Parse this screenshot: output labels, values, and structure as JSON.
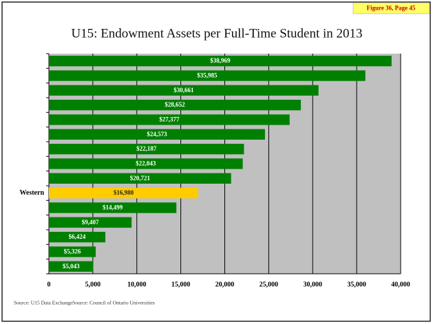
{
  "chart_data": {
    "type": "hbar",
    "title": "U15: Endowment Assets per Full-Time Student in 2013",
    "badge": "Figure 36, Page 45",
    "source": "Source:  U15 Data ExchangeSource:  Council of Ontario Universities",
    "categories": [
      null,
      null,
      null,
      null,
      null,
      null,
      null,
      null,
      null,
      "Western",
      null,
      null,
      null,
      null,
      null
    ],
    "values": [
      38969,
      35985,
      30661,
      28652,
      27377,
      24573,
      22187,
      22043,
      20721,
      16980,
      14499,
      9407,
      6424,
      5326,
      5043
    ],
    "value_labels": [
      "$38,969",
      "$35,985",
      "$30,661",
      "$28,652",
      "$27,377",
      "$24,573",
      "$22,187",
      "$22,043",
      "$20,721",
      "$16,980",
      "$14,499",
      "$9,407",
      "$6,424",
      "$5,326",
      "$5,043"
    ],
    "colors": [
      "#008000",
      "#008000",
      "#008000",
      "#008000",
      "#008000",
      "#008000",
      "#008000",
      "#008000",
      "#008000",
      "#ffcc00",
      "#008000",
      "#008000",
      "#008000",
      "#008000",
      "#008000"
    ],
    "xlim": [
      0,
      40000
    ],
    "xticks": [
      0,
      {
        "value": 5000,
        "label": "5,000"
      },
      {
        "value": 10000,
        "label": "10,000"
      },
      {
        "value": 15000,
        "label": "15,000"
      },
      {
        "value": 20000,
        "label": "20,000"
      },
      {
        "value": 25000,
        "label": "25,000"
      },
      {
        "value": 30000,
        "label": "30,000"
      },
      {
        "value": 35000,
        "label": "35,000"
      },
      {
        "value": 40000,
        "label": "40,000"
      }
    ],
    "grid": true
  }
}
